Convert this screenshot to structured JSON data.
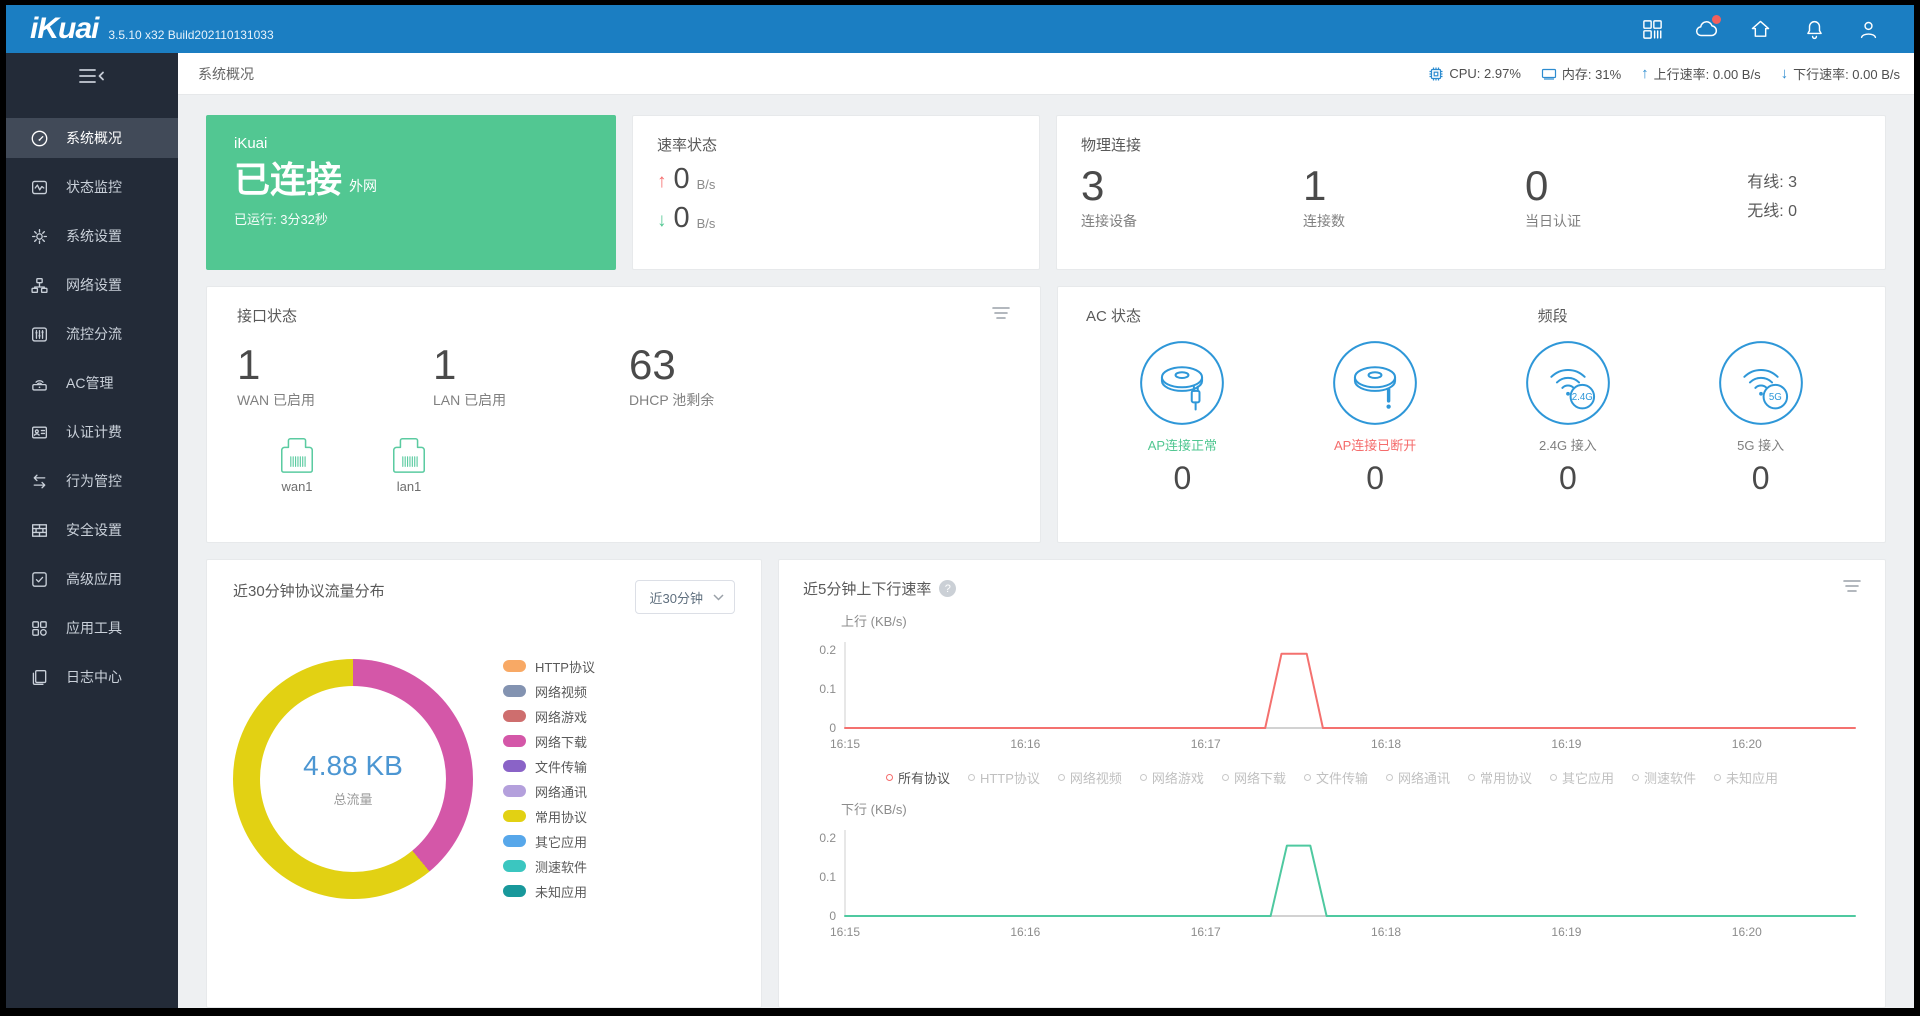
{
  "header": {
    "logo": "iKuai",
    "version": "3.5.10 x32 Build202110131033",
    "icons": [
      "apps-icon",
      "cloud-icon",
      "home-icon",
      "bell-icon",
      "user-icon"
    ],
    "cloud_badge_color": "#F2605E"
  },
  "breadcrumb": {
    "title": "系统概况"
  },
  "statusbar": {
    "cpu": "CPU: 2.97%",
    "memory": "内存: 31%",
    "upload": "上行速率: 0.00 B/s",
    "download": "下行速率: 0.00 B/s"
  },
  "sidebar": {
    "items": [
      {
        "icon": "gauge-icon",
        "label": "系统概况",
        "active": true
      },
      {
        "icon": "monitor-pulse-icon",
        "label": "状态监控",
        "active": false
      },
      {
        "icon": "gear-icon",
        "label": "系统设置",
        "active": false
      },
      {
        "icon": "network-nodes-icon",
        "label": "网络设置",
        "active": false
      },
      {
        "icon": "sliders-icon",
        "label": "流控分流",
        "active": false
      },
      {
        "icon": "access-point-icon",
        "label": "AC管理",
        "active": false
      },
      {
        "icon": "id-card-icon",
        "label": "认证计费",
        "active": false
      },
      {
        "icon": "swap-arrows-icon",
        "label": "行为管控",
        "active": false
      },
      {
        "icon": "brick-wall-icon",
        "label": "安全设置",
        "active": false
      },
      {
        "icon": "checkbox-icon",
        "label": "高级应用",
        "active": false
      },
      {
        "icon": "app-grid-icon",
        "label": "应用工具",
        "active": false
      },
      {
        "icon": "documents-icon",
        "label": "日志中心",
        "active": false
      }
    ]
  },
  "connection_card": {
    "brand": "iKuai",
    "status": "已连接",
    "network": "外网",
    "uptime": "已运行: 3分32秒",
    "bg_color": "#52C792"
  },
  "speed_card": {
    "title": "速率状态",
    "rows": [
      {
        "dir": "up",
        "arrow": "↑",
        "value": "0",
        "unit": "B/s",
        "arrow_color": "#F56C6C"
      },
      {
        "dir": "down",
        "arrow": "↓",
        "value": "0",
        "unit": "B/s",
        "arrow_color": "#52C792"
      }
    ]
  },
  "physical_card": {
    "title": "物理连接",
    "stats": [
      {
        "value": "3",
        "label": "连接设备"
      },
      {
        "value": "1",
        "label": "连接数"
      },
      {
        "value": "0",
        "label": "当日认证"
      }
    ],
    "wired": "有线: 3",
    "wireless": "无线: 0"
  },
  "interface_card": {
    "title": "接口状态",
    "stats": [
      {
        "value": "1",
        "label": "WAN 已启用"
      },
      {
        "value": "1",
        "label": "LAN 已启用"
      },
      {
        "value": "63",
        "label": "DHCP 池剩余"
      }
    ],
    "ports": [
      {
        "label": "wan1"
      },
      {
        "label": "lan1"
      }
    ],
    "port_color": "#5BCBA1"
  },
  "ac_card": {
    "title": "AC 状态",
    "band_title": "频段",
    "icon_color": "#2E97D8",
    "items": [
      {
        "icon": "ap-connected-icon",
        "status": "AP连接正常",
        "status_color": "#52C792",
        "value": "0",
        "badge": ""
      },
      {
        "icon": "ap-disconnected-icon",
        "status": "AP连接已断开",
        "status_color": "#F56C6C",
        "value": "0",
        "badge": ""
      },
      {
        "icon": "wifi-icon",
        "status": "2.4G 接入",
        "status_color": "#7F7F7F",
        "value": "0",
        "badge": "2.4G"
      },
      {
        "icon": "wifi-icon",
        "status": "5G 接入",
        "status_color": "#7F7F7F",
        "value": "0",
        "badge": "5G"
      }
    ]
  },
  "protocol_card": {
    "title": "近30分钟协议流量分布",
    "range_select": "近30分钟",
    "center_value": "4.88 KB",
    "center_label": "总流量"
  },
  "rate_card": {
    "title": "近5分钟上下行速率",
    "up_axis_label": "上行 (KB/s)",
    "down_axis_label": "下行 (KB/s)",
    "legend": [
      "所有协议",
      "HTTP协议",
      "网络视频",
      "网络游戏",
      "网络下载",
      "文件传输",
      "网络通讯",
      "常用协议",
      "其它应用",
      "测速软件",
      "未知应用"
    ],
    "active_legend_index": 0,
    "active_color": "#F56C6C"
  },
  "chart_data": [
    {
      "type": "pie",
      "title": "近30分钟协议流量分布",
      "center_value": "4.88 KB",
      "center_label": "总流量",
      "slices": [
        {
          "label": "网络下载",
          "color": "#D457A8",
          "percent": 39
        },
        {
          "label": "常用协议",
          "color": "#E2D113",
          "percent": 61
        }
      ],
      "legend": [
        {
          "label": "HTTP协议",
          "color": "#F8A965"
        },
        {
          "label": "网络视频",
          "color": "#8393B1"
        },
        {
          "label": "网络游戏",
          "color": "#CE6E6E"
        },
        {
          "label": "网络下载",
          "color": "#D457A8"
        },
        {
          "label": "文件传输",
          "color": "#8A63C7"
        },
        {
          "label": "网络通讯",
          "color": "#B4A0DC"
        },
        {
          "label": "常用协议",
          "color": "#E2D113"
        },
        {
          "label": "其它应用",
          "color": "#57A7EA"
        },
        {
          "label": "测速软件",
          "color": "#3BC6C0"
        },
        {
          "label": "未知应用",
          "color": "#18989B"
        }
      ]
    },
    {
      "type": "line",
      "name": "upload-rate",
      "ylabel": "上行 (KB/s)",
      "color": "#F4716F",
      "x_ticks": [
        "16:15",
        "16:16",
        "16:17",
        "16:18",
        "16:19",
        "16:20"
      ],
      "x_range_minutes": [
        0,
        5.6
      ],
      "ylim": [
        0,
        0.22
      ],
      "y_ticks": [
        0,
        0.1,
        0.2
      ],
      "points_min_kbps": [
        [
          0,
          0
        ],
        [
          2.33,
          0
        ],
        [
          2.42,
          0.19
        ],
        [
          2.56,
          0.19
        ],
        [
          2.65,
          0
        ],
        [
          5.6,
          0
        ]
      ]
    },
    {
      "type": "line",
      "name": "download-rate",
      "ylabel": "下行 (KB/s)",
      "color": "#4FC9A0",
      "x_ticks": [
        "16:15",
        "16:16",
        "16:17",
        "16:18",
        "16:19",
        "16:20"
      ],
      "x_range_minutes": [
        0,
        5.6
      ],
      "ylim": [
        0,
        0.22
      ],
      "y_ticks": [
        0,
        0.1,
        0.2
      ],
      "points_min_kbps": [
        [
          0,
          0
        ],
        [
          2.36,
          0
        ],
        [
          2.45,
          0.18
        ],
        [
          2.58,
          0.18
        ],
        [
          2.67,
          0
        ],
        [
          5.6,
          0
        ]
      ]
    }
  ]
}
